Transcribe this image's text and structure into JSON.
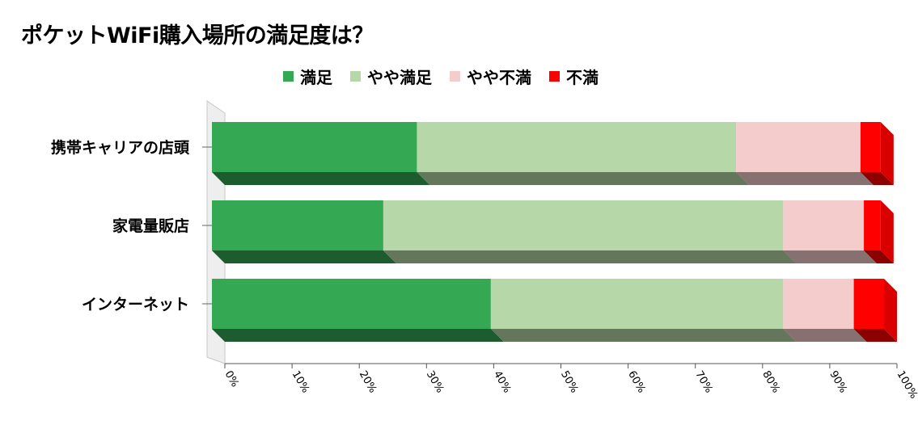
{
  "chart_data": {
    "type": "bar",
    "orientation": "horizontal",
    "stacked": "percent",
    "title": "ポケットWiFi購入場所の満足度は？",
    "categories": [
      "携帯キャリアの店頭",
      "家電量販店",
      "インターネット"
    ],
    "series": [
      {
        "name": "満足",
        "color": "#34A853",
        "values": [
          30.5,
          25.5,
          41.5
        ]
      },
      {
        "name": "やや満足",
        "color": "#B6D7A8",
        "values": [
          47.5,
          59.5,
          43.5
        ]
      },
      {
        "name": "やや不満",
        "color": "#F4CCCC",
        "values": [
          18.5,
          12.0,
          10.5
        ]
      },
      {
        "name": "不満",
        "color": "#FF0000",
        "values": [
          3.0,
          2.5,
          4.5
        ]
      }
    ],
    "x_ticks": [
      "0%",
      "10%",
      "20%",
      "30%",
      "40%",
      "50%",
      "60%",
      "70%",
      "80%",
      "90%",
      "100%"
    ],
    "xlim": [
      0,
      100
    ],
    "legend_position": "top",
    "grid": false
  }
}
